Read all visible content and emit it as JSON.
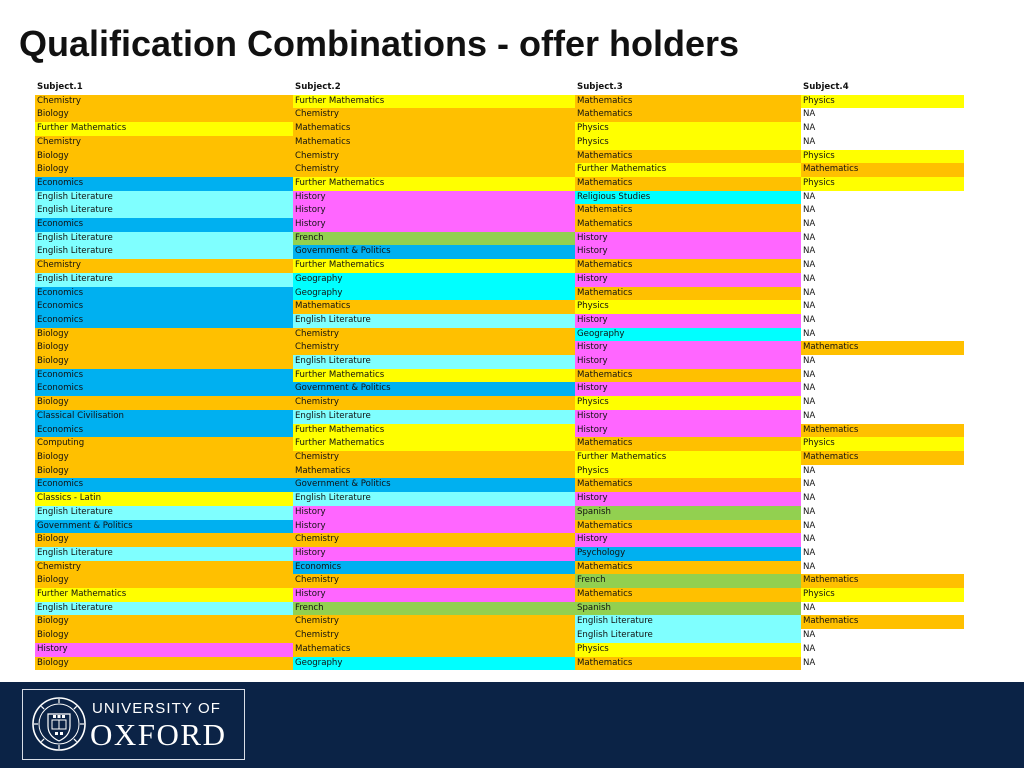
{
  "title": "Qualification Combinations - offer holders",
  "colors": {
    "Chemistry": "#ffc000",
    "Mathematics": "#ffc000",
    "Biology": "#ffc000",
    "Further Mathematics": "#ffff00",
    "Physics": "#ffff00",
    "Classics - Latin": "#ffff00",
    "Computing": "#ffc000",
    "Economics": "#00b0f0",
    "Government & Politics": "#00b0f0",
    "Classical Civilisation": "#00b0f0",
    "Psychology": "#00b0f0",
    "English Literature": "#7fffff",
    "Geography": "#00ffff",
    "Religious Studies": "#00ffff",
    "History": "#ff66ff",
    "French": "#92d050",
    "Spanish": "#92d050",
    "NA": "#ffffff",
    "background": "#ffffff",
    "footer_bar": "#0b2346"
  },
  "table": {
    "headers": [
      "Subject.1",
      "Subject.2",
      "Subject.3",
      "Subject.4"
    ],
    "rows": [
      [
        "Chemistry",
        "Further Mathematics",
        "Mathematics",
        "Physics"
      ],
      [
        "Biology",
        "Chemistry",
        "Mathematics",
        "NA"
      ],
      [
        "Further Mathematics",
        "Mathematics",
        "Physics",
        "NA"
      ],
      [
        "Chemistry",
        "Mathematics",
        "Physics",
        "NA"
      ],
      [
        "Biology",
        "Chemistry",
        "Mathematics",
        "Physics"
      ],
      [
        "Biology",
        "Chemistry",
        "Further Mathematics",
        "Mathematics"
      ],
      [
        "Economics",
        "Further Mathematics",
        "Mathematics",
        "Physics"
      ],
      [
        "English Literature",
        "History",
        "Religious Studies",
        "NA"
      ],
      [
        "English Literature",
        "History",
        "Mathematics",
        "NA"
      ],
      [
        "Economics",
        "History",
        "Mathematics",
        "NA"
      ],
      [
        "English Literature",
        "French",
        "History",
        "NA"
      ],
      [
        "English Literature",
        "Government & Politics",
        "History",
        "NA"
      ],
      [
        "Chemistry",
        "Further Mathematics",
        "Mathematics",
        "NA"
      ],
      [
        "English Literature",
        "Geography",
        "History",
        "NA"
      ],
      [
        "Economics",
        "Geography",
        "Mathematics",
        "NA"
      ],
      [
        "Economics",
        "Mathematics",
        "Physics",
        "NA"
      ],
      [
        "Economics",
        "English Literature",
        "History",
        "NA"
      ],
      [
        "Biology",
        "Chemistry",
        "Geography",
        "NA"
      ],
      [
        "Biology",
        "Chemistry",
        "History",
        "Mathematics"
      ],
      [
        "Biology",
        "English Literature",
        "History",
        "NA"
      ],
      [
        "Economics",
        "Further Mathematics",
        "Mathematics",
        "NA"
      ],
      [
        "Economics",
        "Government & Politics",
        "History",
        "NA"
      ],
      [
        "Biology",
        "Chemistry",
        "Physics",
        "NA"
      ],
      [
        "Classical Civilisation",
        "English Literature",
        "History",
        "NA"
      ],
      [
        "Economics",
        "Further Mathematics",
        "History",
        "Mathematics"
      ],
      [
        "Computing",
        "Further Mathematics",
        "Mathematics",
        "Physics"
      ],
      [
        "Biology",
        "Chemistry",
        "Further Mathematics",
        "Mathematics"
      ],
      [
        "Biology",
        "Mathematics",
        "Physics",
        "NA"
      ],
      [
        "Economics",
        "Government & Politics",
        "Mathematics",
        "NA"
      ],
      [
        "Classics - Latin",
        "English Literature",
        "History",
        "NA"
      ],
      [
        "English Literature",
        "History",
        "Spanish",
        "NA"
      ],
      [
        "Government & Politics",
        "History",
        "Mathematics",
        "NA"
      ],
      [
        "Biology",
        "Chemistry",
        "History",
        "NA"
      ],
      [
        "English Literature",
        "History",
        "Psychology",
        "NA"
      ],
      [
        "Chemistry",
        "Economics",
        "Mathematics",
        "NA"
      ],
      [
        "Biology",
        "Chemistry",
        "French",
        "Mathematics"
      ],
      [
        "Further Mathematics",
        "History",
        "Mathematics",
        "Physics"
      ],
      [
        "English Literature",
        "French",
        "Spanish",
        "NA"
      ],
      [
        "Biology",
        "Chemistry",
        "English Literature",
        "Mathematics"
      ],
      [
        "Biology",
        "Chemistry",
        "English Literature",
        "NA"
      ],
      [
        "History",
        "Mathematics",
        "Physics",
        "NA"
      ],
      [
        "Biology",
        "Geography",
        "Mathematics",
        "NA"
      ]
    ]
  },
  "footer": {
    "logo_line1": "UNIVERSITY OF",
    "logo_line2": "OXFORD",
    "logo_icon": "oxford-crest-icon"
  }
}
